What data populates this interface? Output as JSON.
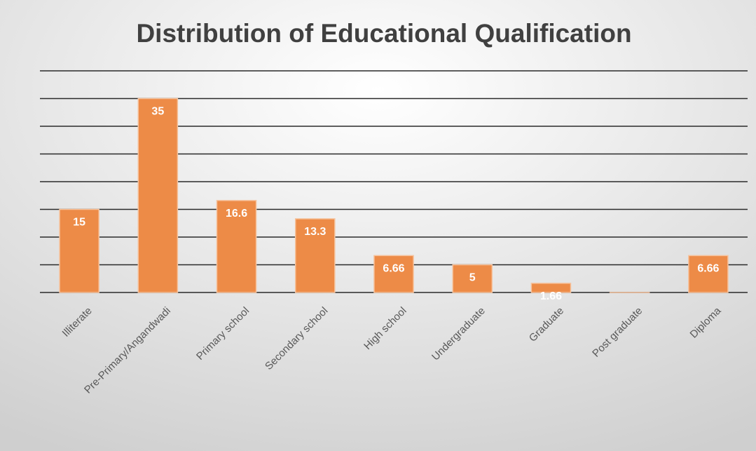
{
  "chart_data": {
    "type": "bar",
    "title": "Distribution of Educational Qualification",
    "categories": [
      "Illiterate",
      "Pre-Primary/Angandwadi",
      "Primary school",
      "Secondary school",
      "High school",
      "Undergraduate",
      "Graduate",
      "Post graduate",
      "Diploma"
    ],
    "values": [
      15,
      35,
      16.6,
      13.3,
      6.66,
      5,
      1.66,
      0,
      6.66
    ],
    "value_labels": [
      "15",
      "35",
      "16.6",
      "13.3",
      "6.66",
      "5",
      "1.66",
      null,
      "6.66"
    ],
    "color": "#ed8b47",
    "ylim": [
      0,
      40
    ],
    "yticks": [
      0,
      5,
      10,
      15,
      20,
      25,
      30,
      35,
      40
    ],
    "grid": true
  }
}
